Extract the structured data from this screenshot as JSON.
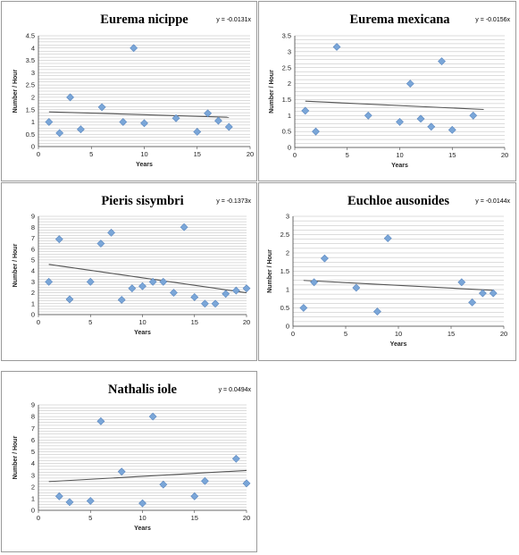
{
  "chart_data": [
    {
      "type": "scatter",
      "title": "Eurema nicippe",
      "equation": "y = -0.0131x",
      "xlabel": "Years",
      "ylabel": "Number / Hour",
      "xlim": [
        0,
        20
      ],
      "ylim": [
        0,
        4.5
      ],
      "xticks": [
        0,
        5,
        10,
        15,
        20
      ],
      "yticks": [
        0,
        0.5,
        1,
        1.5,
        2,
        2.5,
        3,
        3.5,
        4,
        4.5
      ],
      "ytick_labels": [
        "0",
        "0.5",
        "1",
        "1.5",
        "2",
        "2.5",
        "3",
        "3.5",
        "4",
        "4.5"
      ],
      "grid": true,
      "marker_color": "#7aa6d8",
      "trendline": {
        "x": [
          1,
          18
        ],
        "y": [
          1.41,
          1.19
        ]
      },
      "series": [
        {
          "x": [
            1,
            2,
            3,
            4,
            6,
            8,
            9,
            10,
            13,
            15,
            16,
            17,
            18
          ],
          "y": [
            1.0,
            0.55,
            2.0,
            0.7,
            1.6,
            1.0,
            4.0,
            0.95,
            1.15,
            0.6,
            1.35,
            1.05,
            0.8
          ]
        }
      ]
    },
    {
      "type": "scatter",
      "title": "Eurema mexicana",
      "equation": "y = -0.0156x",
      "xlabel": "Years",
      "ylabel": "Number / Hour",
      "xlim": [
        0,
        20
      ],
      "ylim": [
        0,
        3.5
      ],
      "xticks": [
        0,
        5,
        10,
        15,
        20
      ],
      "yticks": [
        0,
        0.5,
        1,
        1.5,
        2,
        2.5,
        3,
        3.5
      ],
      "ytick_labels": [
        "0",
        "0.5",
        "1",
        "1.5",
        "2",
        "2.5",
        "3",
        "3.5"
      ],
      "grid": true,
      "marker_color": "#7aa6d8",
      "trendline": {
        "x": [
          1,
          18
        ],
        "y": [
          1.45,
          1.19
        ]
      },
      "series": [
        {
          "x": [
            1,
            2,
            4,
            7,
            10,
            11,
            12,
            13,
            14,
            15,
            17
          ],
          "y": [
            1.15,
            0.5,
            3.15,
            1.0,
            0.8,
            2.0,
            0.9,
            0.65,
            2.7,
            0.55,
            1.0
          ]
        }
      ]
    },
    {
      "type": "scatter",
      "title": "Pieris sisymbri",
      "equation": "y = -0.1373x",
      "xlabel": "Years",
      "ylabel": "Number / Hour",
      "xlim": [
        0,
        20
      ],
      "ylim": [
        0,
        9
      ],
      "xticks": [
        0,
        5,
        10,
        15,
        20
      ],
      "yticks": [
        0,
        1,
        2,
        3,
        4,
        5,
        6,
        7,
        8,
        9
      ],
      "ytick_labels": [
        "0",
        "1",
        "2",
        "3",
        "4",
        "5",
        "6",
        "7",
        "8",
        "9"
      ],
      "grid": true,
      "marker_color": "#7aa6d8",
      "trendline": {
        "x": [
          1,
          20
        ],
        "y": [
          4.6,
          2.0
        ]
      },
      "series": [
        {
          "x": [
            1,
            2,
            3,
            5,
            6,
            7,
            8,
            9,
            10,
            11,
            12,
            13,
            14,
            15,
            16,
            17,
            18,
            19,
            20
          ],
          "y": [
            3.0,
            6.9,
            1.4,
            3.0,
            6.5,
            7.5,
            1.35,
            2.4,
            2.6,
            3.0,
            3.0,
            2.0,
            8.0,
            1.6,
            1.0,
            1.0,
            1.9,
            2.2,
            2.4
          ]
        }
      ]
    },
    {
      "type": "scatter",
      "title": "Euchloe ausonides",
      "equation": "y = -0.0144x",
      "xlabel": "Years",
      "ylabel": "Number / Hour",
      "xlim": [
        0,
        20
      ],
      "ylim": [
        0,
        3
      ],
      "xticks": [
        0,
        5,
        10,
        15,
        20
      ],
      "yticks": [
        0,
        0.5,
        1,
        1.5,
        2,
        2.5,
        3
      ],
      "ytick_labels": [
        "0",
        "0.5",
        "1",
        "1.5",
        "2",
        "2.5",
        "3"
      ],
      "grid": true,
      "marker_color": "#7aa6d8",
      "trendline": {
        "x": [
          1,
          19
        ],
        "y": [
          1.25,
          0.98
        ]
      },
      "series": [
        {
          "x": [
            1,
            2,
            3,
            6,
            8,
            9,
            16,
            17,
            18,
            19
          ],
          "y": [
            0.5,
            1.2,
            1.85,
            1.05,
            0.4,
            2.4,
            1.2,
            0.65,
            0.9,
            0.9
          ]
        }
      ]
    },
    {
      "type": "scatter",
      "title": "Nathalis iole",
      "equation": "y = 0.0494x",
      "xlabel": "Years",
      "ylabel": "Number / Hour",
      "xlim": [
        0,
        20
      ],
      "ylim": [
        0,
        9
      ],
      "xticks": [
        0,
        5,
        10,
        15,
        20
      ],
      "yticks": [
        0,
        1,
        2,
        3,
        4,
        5,
        6,
        7,
        8,
        9
      ],
      "ytick_labels": [
        "0",
        "1",
        "2",
        "3",
        "4",
        "5",
        "6",
        "7",
        "8",
        "9"
      ],
      "grid": true,
      "marker_color": "#7aa6d8",
      "trendline": {
        "x": [
          1,
          20
        ],
        "y": [
          2.45,
          3.4
        ]
      },
      "series": [
        {
          "x": [
            2,
            3,
            5,
            6,
            8,
            10,
            11,
            12,
            15,
            16,
            19,
            20
          ],
          "y": [
            1.2,
            0.7,
            0.8,
            7.6,
            3.3,
            0.6,
            8.0,
            2.2,
            1.2,
            2.5,
            4.4,
            2.3
          ]
        }
      ]
    }
  ]
}
